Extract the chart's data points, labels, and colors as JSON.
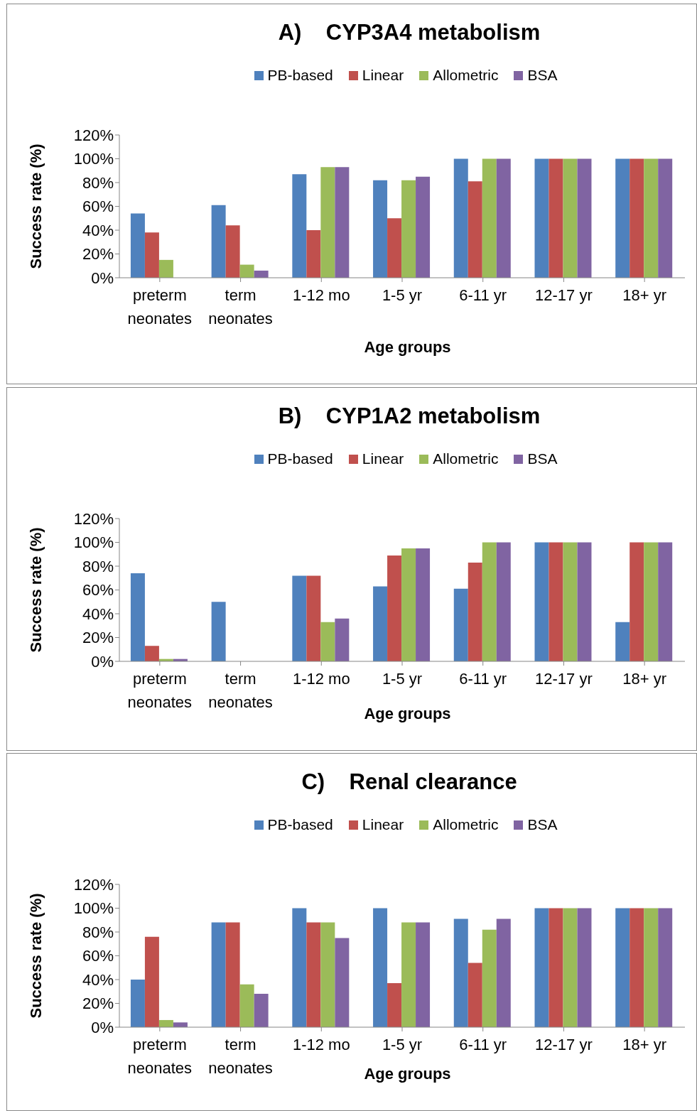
{
  "chart_data": [
    {
      "type": "bar",
      "title": "A)    CYP3A4 metabolism",
      "xlabel": "Age groups",
      "ylabel": "Success rate (%)",
      "categories": [
        "preterm neonates",
        "term neonates",
        "1-12 mo",
        "1-5 yr",
        "6-11 yr",
        "12-17 yr",
        "18+ yr"
      ],
      "ylim": [
        0,
        120
      ],
      "yticks": [
        {
          "value": 0,
          "label": "0%"
        },
        {
          "value": 20,
          "label": "20%"
        },
        {
          "value": 40,
          "label": "40%"
        },
        {
          "value": 60,
          "label": "60%"
        },
        {
          "value": 80,
          "label": "80%"
        },
        {
          "value": 100,
          "label": "100%"
        },
        {
          "value": 120,
          "label": "120%"
        }
      ],
      "grid": false,
      "legend": "top",
      "series": [
        {
          "name": "PB-based",
          "color": "#4f81bd",
          "values": [
            54,
            61,
            87,
            82,
            100,
            100,
            100
          ]
        },
        {
          "name": "Linear",
          "color": "#c0504d",
          "values": [
            38,
            44,
            40,
            50,
            81,
            100,
            100
          ]
        },
        {
          "name": "Allometric",
          "color": "#9bbb59",
          "values": [
            15,
            11,
            93,
            82,
            100,
            100,
            100
          ]
        },
        {
          "name": "BSA",
          "color": "#8064a2",
          "values": [
            0,
            6,
            93,
            85,
            100,
            100,
            100
          ]
        }
      ]
    },
    {
      "type": "bar",
      "title": "B)    CYP1A2 metabolism",
      "xlabel": "Age groups",
      "ylabel": "Success rate (%)",
      "categories": [
        "preterm neonates",
        "term neonates",
        "1-12 mo",
        "1-5 yr",
        "6-11 yr",
        "12-17 yr",
        "18+ yr"
      ],
      "ylim": [
        0,
        120
      ],
      "yticks": [
        {
          "value": 0,
          "label": "0%"
        },
        {
          "value": 20,
          "label": "20%"
        },
        {
          "value": 40,
          "label": "40%"
        },
        {
          "value": 60,
          "label": "60%"
        },
        {
          "value": 80,
          "label": "80%"
        },
        {
          "value": 100,
          "label": "100%"
        },
        {
          "value": 120,
          "label": "120%"
        }
      ],
      "grid": false,
      "legend": "top",
      "series": [
        {
          "name": "PB-based",
          "color": "#4f81bd",
          "values": [
            74,
            50,
            72,
            63,
            61,
            100,
            33
          ]
        },
        {
          "name": "Linear",
          "color": "#c0504d",
          "values": [
            13,
            0,
            72,
            89,
            83,
            100,
            100
          ]
        },
        {
          "name": "Allometric",
          "color": "#9bbb59",
          "values": [
            2,
            0,
            33,
            95,
            100,
            100,
            100
          ]
        },
        {
          "name": "BSA",
          "color": "#8064a2",
          "values": [
            2,
            0,
            36,
            95,
            100,
            100,
            100
          ]
        }
      ]
    },
    {
      "type": "bar",
      "title": "C)    Renal clearance",
      "xlabel": "Age groups",
      "ylabel": "Success rate (%)",
      "categories": [
        "preterm neonates",
        "term neonates",
        "1-12 mo",
        "1-5 yr",
        "6-11 yr",
        "12-17 yr",
        "18+ yr"
      ],
      "ylim": [
        0,
        120
      ],
      "yticks": [
        {
          "value": 0,
          "label": "0%"
        },
        {
          "value": 20,
          "label": "20%"
        },
        {
          "value": 40,
          "label": "40%"
        },
        {
          "value": 60,
          "label": "60%"
        },
        {
          "value": 80,
          "label": "80%"
        },
        {
          "value": 100,
          "label": "100%"
        },
        {
          "value": 120,
          "label": "120%"
        }
      ],
      "grid": false,
      "legend": "top",
      "series": [
        {
          "name": "PB-based",
          "color": "#4f81bd",
          "values": [
            40,
            88,
            100,
            100,
            91,
            100,
            100
          ]
        },
        {
          "name": "Linear",
          "color": "#c0504d",
          "values": [
            76,
            88,
            88,
            37,
            54,
            100,
            100
          ]
        },
        {
          "name": "Allometric",
          "color": "#9bbb59",
          "values": [
            6,
            36,
            88,
            88,
            82,
            100,
            100
          ]
        },
        {
          "name": "BSA",
          "color": "#8064a2",
          "values": [
            4,
            28,
            75,
            88,
            91,
            100,
            100
          ]
        }
      ]
    }
  ]
}
